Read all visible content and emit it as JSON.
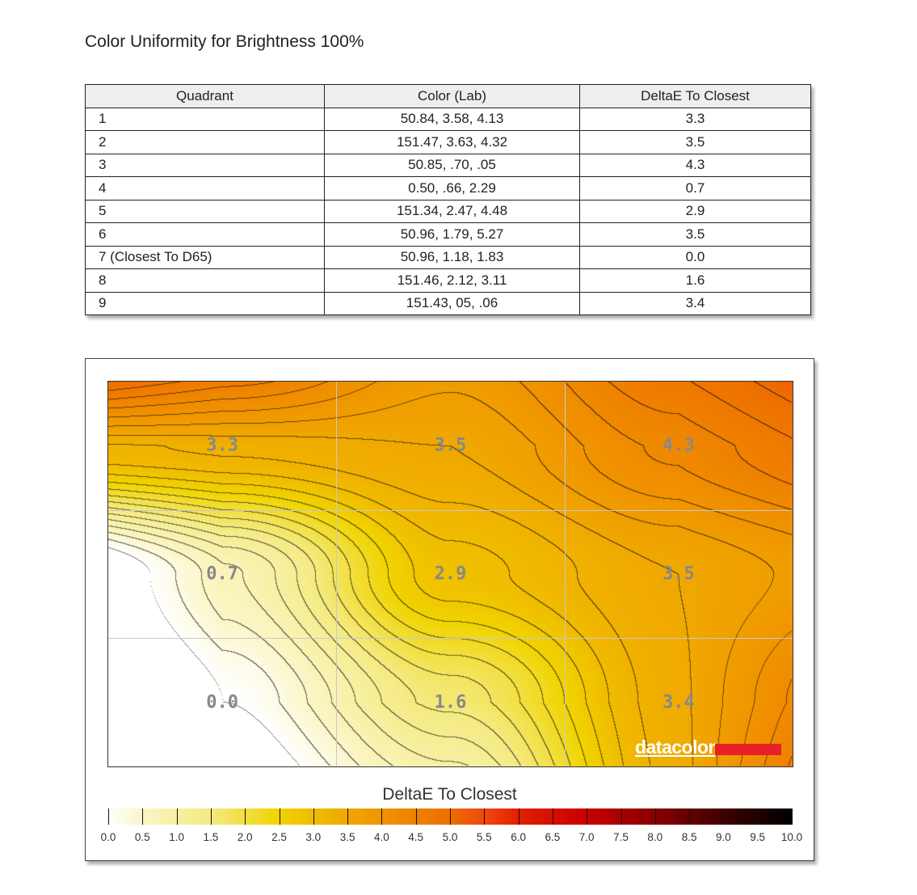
{
  "title": "Color Uniformity for Brightness 100%",
  "table": {
    "headers": [
      "Quadrant",
      "Color (Lab)",
      "DeltaE To Closest"
    ],
    "rows": [
      [
        "1",
        "50.84,   3.58,   4.13",
        "3.3"
      ],
      [
        "2",
        "151.47,   3.63,   4.32",
        "3.5"
      ],
      [
        "3",
        "50.85,    .70,    .05",
        "4.3"
      ],
      [
        "4",
        "0.50,    .66,   2.29",
        "0.7"
      ],
      [
        "5",
        "151.34,   2.47,   4.48",
        "2.9"
      ],
      [
        "6",
        "50.96,   1.79,   5.27",
        "3.5"
      ],
      [
        "7 (Closest To D65)",
        "50.96,   1.18,   1.83",
        "0.0"
      ],
      [
        "8",
        "151.46,   2.12,   3.11",
        "1.6"
      ],
      [
        "9",
        "151.43,    05,    .06",
        "3.4"
      ]
    ]
  },
  "chart_data": {
    "type": "heatmap",
    "grid": [
      [
        "3.3",
        "3.5",
        "4.3"
      ],
      [
        "0.7",
        "2.9",
        "3.5"
      ],
      [
        "0.0",
        "1.6",
        "3.4"
      ]
    ],
    "legend_title": "DeltaE To Closest",
    "scale_range": [
      0,
      10
    ],
    "scale_ticks": [
      "0.0",
      "0.5",
      "1.0",
      "1.5",
      "2.0",
      "2.5",
      "3.0",
      "3.5",
      "4.0",
      "4.5",
      "5.0",
      "5.5",
      "6.0",
      "6.5",
      "7.0",
      "7.5",
      "8.0",
      "8.5",
      "9.0",
      "9.5",
      "10.0"
    ],
    "colormap": [
      [
        0,
        "#ffffff"
      ],
      [
        0.5,
        "#fbf6c8"
      ],
      [
        1.5,
        "#f4ea80"
      ],
      [
        2.5,
        "#f0d400"
      ],
      [
        3.0,
        "#f0bc00"
      ],
      [
        4.0,
        "#f09400"
      ],
      [
        5.0,
        "#ee6e00"
      ],
      [
        5.5,
        "#f04810"
      ],
      [
        6.0,
        "#e02000"
      ],
      [
        7.0,
        "#c80000"
      ],
      [
        8.0,
        "#880000"
      ],
      [
        9.0,
        "#400000"
      ],
      [
        10.0,
        "#000000"
      ]
    ],
    "contour_step": 0.25
  },
  "logo": "datacolor"
}
